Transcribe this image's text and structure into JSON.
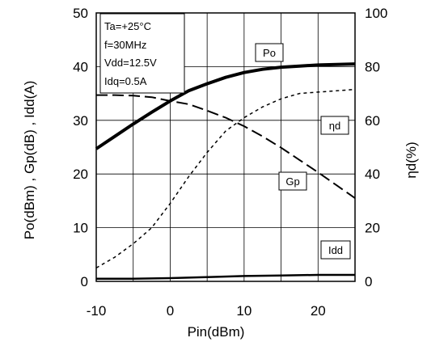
{
  "chart_data": {
    "type": "line",
    "xlabel": "Pin(dBm)",
    "ylabel_left": "Po(dBm) , Gp(dB) , Idd(A)",
    "ylabel_right": "ηd(%)",
    "xlim": [
      -10,
      25
    ],
    "ylim_left": [
      0,
      50
    ],
    "ylim_right": [
      0,
      100
    ],
    "x_ticks": [
      -10,
      0,
      10,
      20
    ],
    "y_ticks_left": [
      0,
      10,
      20,
      30,
      40,
      50
    ],
    "y_ticks_right": [
      0,
      20,
      40,
      60,
      80,
      100
    ],
    "grid": true,
    "conditions": [
      "Ta=+25°C",
      "f=30MHz",
      "Vdd=12.5V",
      "Idq=0.5A"
    ],
    "series": [
      {
        "name": "Po",
        "axis": "left",
        "style": "thick-solid",
        "x": [
          -10,
          -7.5,
          -5,
          -2.5,
          0,
          2.5,
          5,
          7.5,
          10,
          12.5,
          15,
          17.5,
          20,
          22.5,
          25
        ],
        "values": [
          24.7,
          27.0,
          29.3,
          31.5,
          33.6,
          35.5,
          36.8,
          38.0,
          38.9,
          39.5,
          39.9,
          40.1,
          40.3,
          40.4,
          40.5
        ]
      },
      {
        "name": "Gp",
        "axis": "left",
        "style": "long-dash",
        "x": [
          -10,
          -7.5,
          -5,
          -2.5,
          0,
          2.5,
          5,
          7.5,
          10,
          12.5,
          15,
          17.5,
          20,
          22.5,
          25
        ],
        "values": [
          34.7,
          34.7,
          34.6,
          34.3,
          33.6,
          33.0,
          31.8,
          30.5,
          28.9,
          27.0,
          24.9,
          22.6,
          20.3,
          17.9,
          15.5
        ]
      },
      {
        "name": "ηd",
        "axis": "right",
        "style": "short-dash",
        "x": [
          -10,
          -7.5,
          -5,
          -2.5,
          0,
          2.5,
          5,
          7.5,
          10,
          12.5,
          15,
          17.5,
          20,
          22.5,
          25
        ],
        "values": [
          5,
          9,
          14,
          20,
          29,
          39,
          48,
          56,
          61,
          65,
          68,
          70,
          70.5,
          71,
          71.5
        ]
      },
      {
        "name": "Idd",
        "axis": "left",
        "style": "solid",
        "x": [
          -10,
          -5,
          0,
          5,
          10,
          15,
          20,
          25
        ],
        "values": [
          0.5,
          0.5,
          0.6,
          0.8,
          1.0,
          1.1,
          1.2,
          1.2
        ]
      }
    ]
  }
}
